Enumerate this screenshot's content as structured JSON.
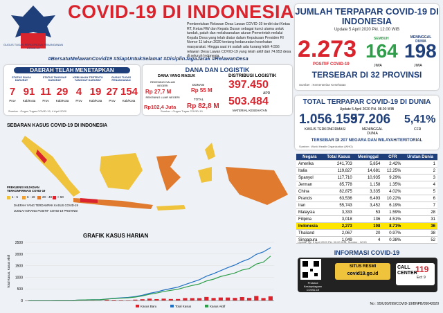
{
  "header": {
    "title": "COVID-19 DI INDONESIA",
    "logo_text": "GUGUS TUGAS PERCEPATAN PENANGANAN COVID-19",
    "paragraph": "Pembentukan Relawan Desa Lawan COVID-19 terdiri dari Ketua RT, Ketua RW dan Kepala Dusun sebagai kunci utama untuk tunduk, patuh dan melaksanakan aturan Pemerintah melalui Kepala Desa yang telah diatur dalam Keputusan Presiden RI Nomor 11 tahun 2020 tentang kedaruratan kesehatan masyarakat. Hingga saat ini sudah ada kurang lebih 4.556 relawan Desa Lawan COVID-19 yang telah aktif dari 74.953 desa di seluruh Indonesia."
  },
  "indonesia": {
    "title": "JUMLAH TERPAPAR COVID-19 DI INDONESIA",
    "update": "Update 5 April 2020 Pkl. 12.00 WIB",
    "positive": "2.273",
    "positive_label": "POSITIF COVID-19",
    "recovered_label": "SEMBUH",
    "recovered": "164",
    "recovered_unit": "JIWA",
    "deaths_label": "MENINGGAL DUNIA",
    "deaths": "198",
    "deaths_unit": "JIWA",
    "spread": "TERSEBAR DI 32 PROVINSI",
    "source": "Sumber : Kementerian Kesehatan"
  },
  "hashtags": "#BersatuMelawanCovid19 #SiapUntukSelamat #DisiplinJagaJarak #RelawanDesa",
  "regions": {
    "title": "DAERAH TELAH MENETAPKAN",
    "groups": [
      {
        "label": "STATUS SIAGA DARURAT",
        "prov": "7",
        "kab": "91"
      },
      {
        "label": "STATUS TANGGAP DARURAT",
        "prov": "11",
        "kab": "29"
      },
      {
        "label": "KEBIJAKAN TERTENTU TANGGAP DARURAT",
        "prov": "4",
        "kab": "19"
      },
      {
        "label": "GUGUS TUGAS PENANGANAN",
        "prov": "27",
        "kab": "154"
      }
    ],
    "prov_unit": "Prov",
    "kab_unit": "Kab/Kota",
    "source": "Sumber : Gugus Tugas COVID-19, 4 April 2020"
  },
  "funds": {
    "title": "DANA DAN LOGISTIK",
    "incoming": "DANA YANG MASUK",
    "domestic_label": "REKENING DALAM NEGERI",
    "domestic": "Rp 27,7 M",
    "donation_label": "DONASI",
    "donation": "Rp 55 M",
    "foreign_label": "REKENING LUAR NEGERI",
    "foreign": "Rp102,4 Juta",
    "total_label": "TOTAL",
    "total": "Rp 82,8 M",
    "logistics_label": "DISTRIBUSI LOGISTIK",
    "apd": "397.450",
    "apd_label": "APD",
    "material": "503.484",
    "material_label": "MATERIAL KESEHATAN",
    "source": "Sumber : Gugus Tugas COVID-19"
  },
  "map": {
    "title": "SEBARAN KASUS COVID-19 DI INDONESIA",
    "legend_title": "FREKUENSI KEJADIAN TERKONFIRMASI COVID-19",
    "classes": [
      "1 - 5",
      "6 - 19",
      "20 - 49",
      "> 50"
    ],
    "affected": "DAERAH YANG TERDAMPAK KASUS COVID-19",
    "count_note": "JUMLAH ORANG POSITIF COVID-19 PROVINSI"
  },
  "daily_chart": {
    "type": "bar",
    "title": "GRAFIK KASUS HARIAN",
    "ylabel": "Total Kasus, Kasus Aktif",
    "ylim": [
      0,
      2500
    ],
    "yticks": [
      0,
      500,
      1000,
      1500,
      2000,
      2500
    ],
    "series": [
      {
        "name": "Kasus Baru",
        "color": "#d9232d",
        "values": [
          2,
          0,
          0,
          0,
          2,
          0,
          2,
          13,
          8,
          7,
          0,
          35,
          27,
          21,
          17,
          38,
          55,
          82,
          60,
          81,
          64,
          65,
          107,
          104,
          103,
          153,
          109,
          130,
          129,
          114,
          149,
          113,
          196,
          106,
          181
        ]
      },
      {
        "name": "Total Kasus",
        "color": "#1f6fc4",
        "values": [
          2,
          2,
          2,
          2,
          4,
          4,
          6,
          19,
          27,
          34,
          34,
          69,
          96,
          117,
          134,
          172,
          227,
          309,
          369,
          450,
          514,
          579,
          686,
          790,
          893,
          1046,
          1155,
          1285,
          1414,
          1528,
          1677,
          1790,
          1986,
          2092,
          2273
        ]
      },
      {
        "name": "Kasus Aktif",
        "color": "#2e9e4a",
        "values": [
          2,
          2,
          2,
          2,
          4,
          4,
          6,
          19,
          27,
          31,
          31,
          61,
          86,
          102,
          117,
          148,
          198,
          269,
          322,
          388,
          438,
          485,
          572,
          648,
          711,
          841,
          919,
          1034,
          1107,
          1186,
          1311,
          1375,
          1567,
          1653,
          1911
        ]
      }
    ]
  },
  "world": {
    "title": "TOTAL TERPAPAR COVID-19 DI DUNIA",
    "update": "Update 5 April 2020 Pkl. 08.00 WIB",
    "cases": "1.056.159",
    "cases_label": "KASUS TERKONFIRMASI",
    "deaths": "57.206",
    "deaths_label": "MENINGGAL DUNIA",
    "cfr": "5,41%",
    "cfr_label": "CFR",
    "spread": "TERSEBAR DI 207 NEGARA DAN WILAYAH/TERITORIAL",
    "source": "Sumber : World Health Organization (WHO)"
  },
  "table": {
    "header": [
      "Negara",
      "Total Kasus",
      "Meninggal",
      "CFR",
      "Urutan Dunia"
    ],
    "rows": [
      [
        "Amerika",
        "241,703",
        "5,854",
        "2.42%",
        "1"
      ],
      [
        "Italia",
        "119,827",
        "14,681",
        "12.25%",
        "2"
      ],
      [
        "Spanyol",
        "117,710",
        "10,935",
        "9.29%",
        "3"
      ],
      [
        "Jerman",
        "85,778",
        "1,158",
        "1.35%",
        "4"
      ],
      [
        "China",
        "82,875",
        "3,335",
        "4.02%",
        "5"
      ],
      [
        "Prancis",
        "63,536",
        "6,493",
        "10.22%",
        "6"
      ],
      [
        "Iran",
        "55,743",
        "3,452",
        "6.19%",
        "7"
      ],
      [
        "Malaysia",
        "3,333",
        "53",
        "1.59%",
        "28"
      ],
      [
        "Filipina",
        "3,018",
        "136",
        "4.51%",
        "31"
      ],
      [
        "Indonesia",
        "2,273",
        "198",
        "8.71%",
        "36"
      ],
      [
        "Thailand",
        "2,067",
        "20",
        "0.97%",
        "38"
      ],
      [
        "Singapura",
        "1,049",
        "4",
        "0.38%",
        "52"
      ]
    ],
    "note": "Update Tgl. 5 April 2020 Pkl. 00.00 WIB, Sumber : WHO"
  },
  "info": {
    "title": "INFORMASI COVID-19",
    "qr_caption": "Protokol Kesiapsiagaan COVID-19",
    "site_label": "SITUS RESMI",
    "site": "covid19.go.id",
    "call": "CALL CENTER",
    "number": "119",
    "ext": "Ext: 9"
  },
  "footer": "No : 95/U20/099/COVID-19/BNPB/05042020"
}
